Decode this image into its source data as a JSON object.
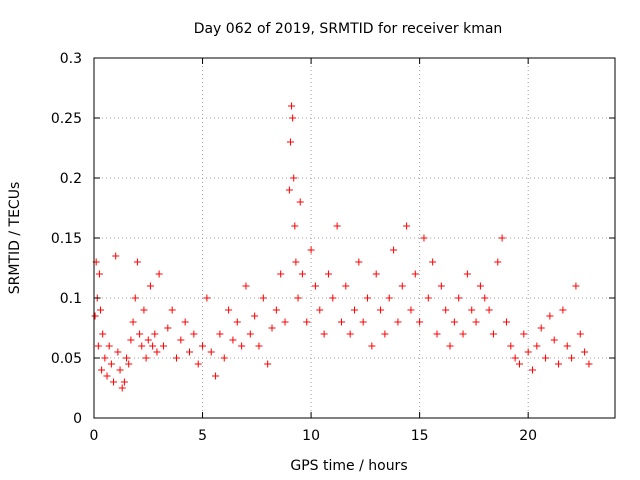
{
  "chart_data": {
    "type": "scatter",
    "title": "Day 062 of 2019, SRMTID for receiver kman",
    "xlabel": "GPS time / hours",
    "ylabel": "SRMTID / TECUs",
    "xlim": [
      0,
      24
    ],
    "ylim": [
      0,
      0.3
    ],
    "xticks": [
      0,
      5,
      10,
      15,
      20
    ],
    "xtick_labels": [
      "0",
      "5",
      "10",
      "15",
      "20"
    ],
    "yticks": [
      0,
      0.05,
      0.1,
      0.15,
      0.2,
      0.25,
      0.3
    ],
    "ytick_labels": [
      "0",
      "0.05",
      "0.1",
      "0.15",
      "0.2",
      "0.25",
      "0.3"
    ],
    "grid": true,
    "marker": "+",
    "color": "#ff0000",
    "series": [
      {
        "name": "SRMTID",
        "x": [
          0.05,
          0.1,
          0.15,
          0.2,
          0.25,
          0.3,
          0.35,
          0.4,
          0.5,
          0.6,
          0.7,
          0.8,
          0.9,
          1.0,
          1.1,
          1.2,
          1.3,
          1.4,
          1.5,
          1.6,
          1.7,
          1.8,
          1.9,
          2.0,
          2.1,
          2.2,
          2.3,
          2.4,
          2.5,
          2.6,
          2.7,
          2.8,
          2.9,
          3.0,
          3.2,
          3.4,
          3.6,
          3.8,
          4.0,
          4.2,
          4.4,
          4.6,
          4.8,
          5.0,
          5.2,
          5.4,
          5.6,
          5.8,
          6.0,
          6.2,
          6.4,
          6.6,
          6.8,
          7.0,
          7.2,
          7.4,
          7.6,
          7.8,
          8.0,
          8.2,
          8.4,
          8.6,
          8.8,
          9.0,
          9.05,
          9.1,
          9.15,
          9.2,
          9.25,
          9.3,
          9.4,
          9.5,
          9.6,
          9.8,
          10.0,
          10.2,
          10.4,
          10.6,
          10.8,
          11.0,
          11.2,
          11.4,
          11.6,
          11.8,
          12.0,
          12.2,
          12.4,
          12.6,
          12.8,
          13.0,
          13.2,
          13.4,
          13.6,
          13.8,
          14.0,
          14.2,
          14.4,
          14.6,
          14.8,
          15.0,
          15.2,
          15.4,
          15.6,
          15.8,
          16.0,
          16.2,
          16.4,
          16.6,
          16.8,
          17.0,
          17.2,
          17.4,
          17.6,
          17.8,
          18.0,
          18.2,
          18.4,
          18.6,
          18.8,
          19.0,
          19.2,
          19.4,
          19.6,
          19.8,
          20.0,
          20.2,
          20.4,
          20.6,
          20.8,
          21.0,
          21.2,
          21.4,
          21.6,
          21.8,
          22.0,
          22.2,
          22.4,
          22.6,
          22.8
        ],
        "y": [
          0.085,
          0.13,
          0.1,
          0.06,
          0.12,
          0.09,
          0.04,
          0.07,
          0.05,
          0.035,
          0.06,
          0.045,
          0.03,
          0.135,
          0.055,
          0.04,
          0.025,
          0.03,
          0.05,
          0.045,
          0.065,
          0.08,
          0.1,
          0.13,
          0.07,
          0.06,
          0.09,
          0.05,
          0.065,
          0.11,
          0.06,
          0.07,
          0.055,
          0.12,
          0.06,
          0.075,
          0.09,
          0.05,
          0.065,
          0.08,
          0.055,
          0.07,
          0.045,
          0.06,
          0.1,
          0.055,
          0.035,
          0.07,
          0.05,
          0.09,
          0.065,
          0.08,
          0.06,
          0.11,
          0.07,
          0.085,
          0.06,
          0.1,
          0.045,
          0.075,
          0.09,
          0.12,
          0.08,
          0.19,
          0.23,
          0.26,
          0.25,
          0.2,
          0.16,
          0.13,
          0.1,
          0.18,
          0.12,
          0.08,
          0.14,
          0.11,
          0.09,
          0.07,
          0.12,
          0.1,
          0.16,
          0.08,
          0.11,
          0.07,
          0.09,
          0.13,
          0.08,
          0.1,
          0.06,
          0.12,
          0.09,
          0.07,
          0.1,
          0.14,
          0.08,
          0.11,
          0.16,
          0.09,
          0.12,
          0.08,
          0.15,
          0.1,
          0.13,
          0.07,
          0.11,
          0.09,
          0.06,
          0.08,
          0.1,
          0.07,
          0.12,
          0.09,
          0.08,
          0.11,
          0.1,
          0.09,
          0.07,
          0.13,
          0.15,
          0.08,
          0.06,
          0.05,
          0.045,
          0.07,
          0.055,
          0.04,
          0.06,
          0.075,
          0.05,
          0.085,
          0.065,
          0.045,
          0.09,
          0.06,
          0.05,
          0.11,
          0.07,
          0.055,
          0.045
        ]
      }
    ]
  }
}
